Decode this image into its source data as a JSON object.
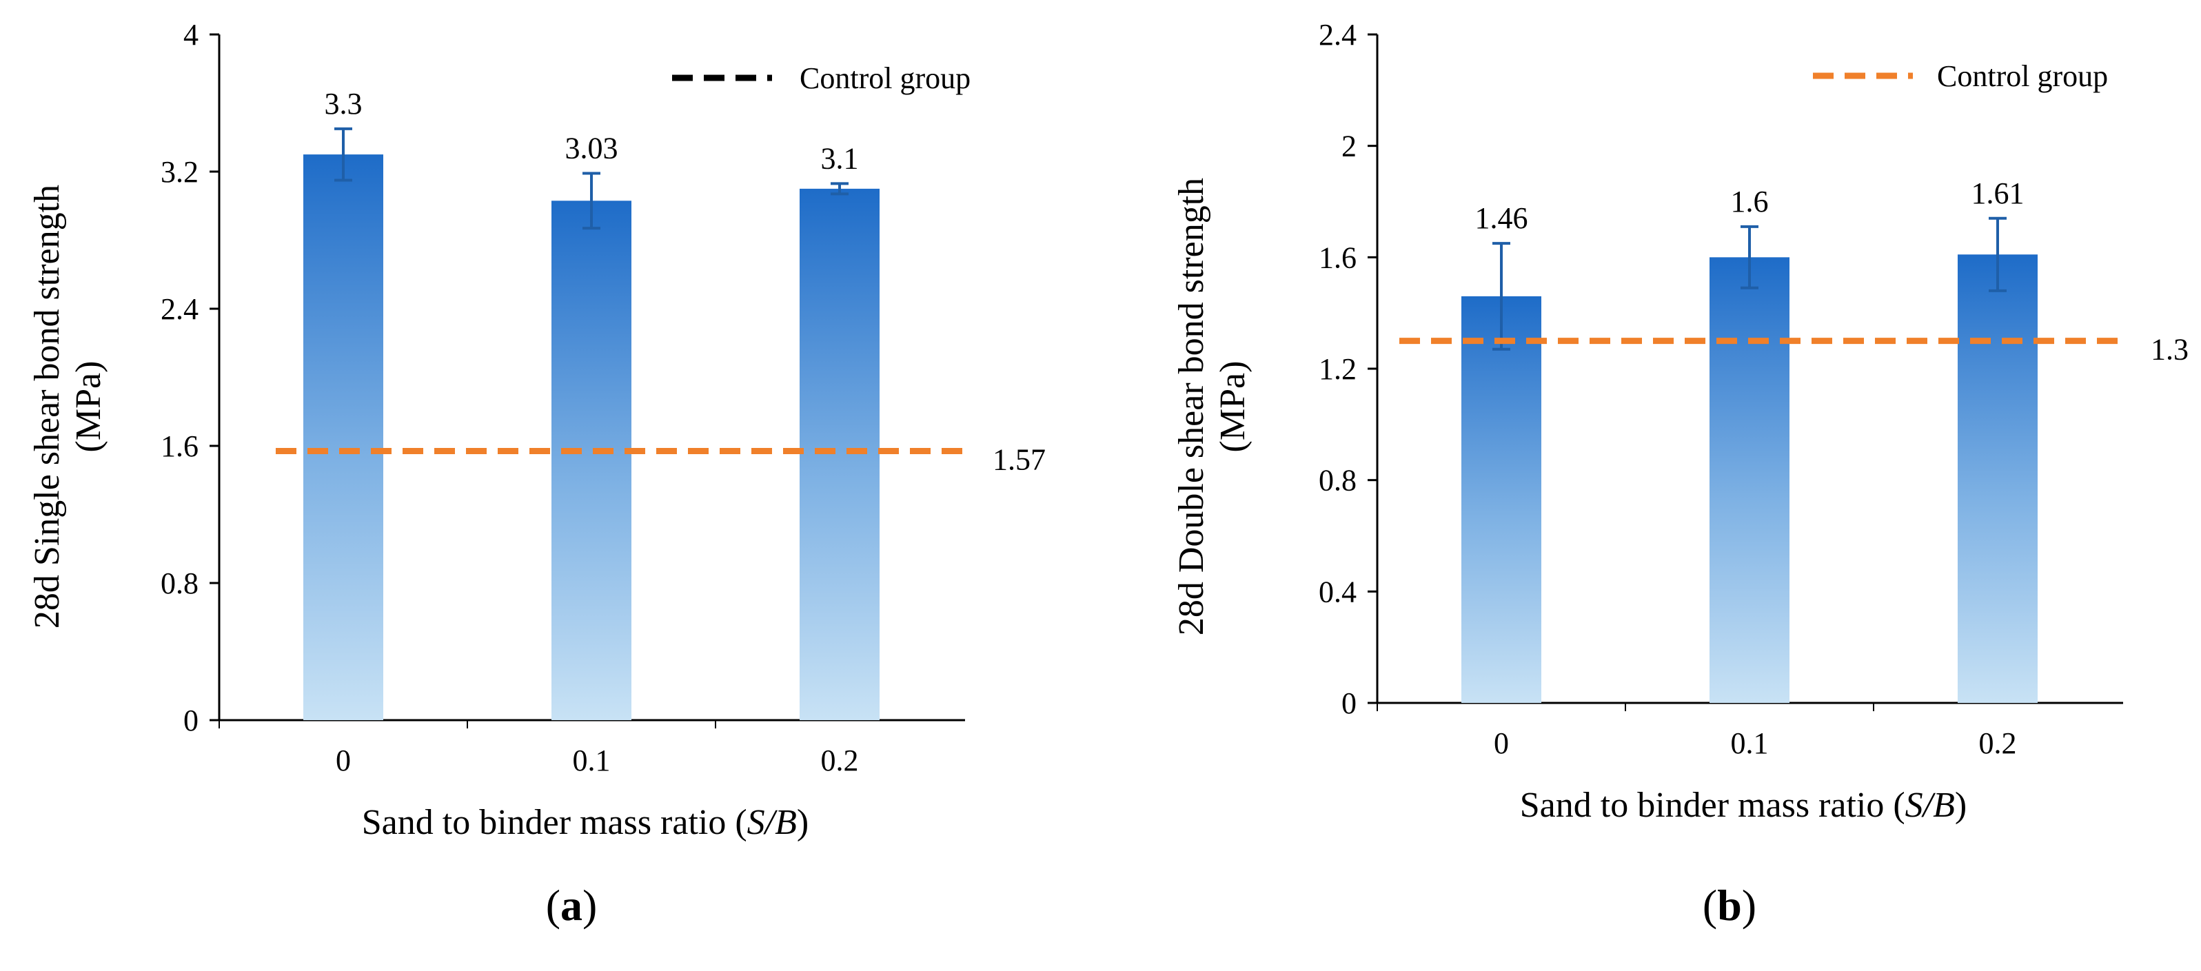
{
  "chart_data": [
    {
      "type": "bar",
      "panel_label": "(a)",
      "categories": [
        "0",
        "0.1",
        "0.2"
      ],
      "values": [
        3.3,
        3.03,
        3.1
      ],
      "value_labels": [
        "3.3",
        "3.03",
        "3.1"
      ],
      "error": [
        0.15,
        0.16,
        0.03
      ],
      "ylabel_line1": "28d Single  shear bond strength",
      "ylabel_line2": "(MPa)",
      "xlabel": "Sand to binder  mass ratio  (S/B)",
      "ylim": [
        0,
        4
      ],
      "yticks": [
        0,
        0.8,
        1.6,
        2.4,
        3.2,
        4
      ],
      "ytick_labels": [
        "0",
        "0.8",
        "1.6",
        "2.4",
        "3.2",
        "4"
      ],
      "control": {
        "value": 1.57,
        "label": "1.57"
      },
      "legend": {
        "label": "Control group",
        "color": "#000000",
        "position": "top-right"
      }
    },
    {
      "type": "bar",
      "panel_label": "(b)",
      "categories": [
        "0",
        "0.1",
        "0.2"
      ],
      "values": [
        1.46,
        1.6,
        1.61
      ],
      "value_labels": [
        "1.46",
        "1.6",
        "1.61"
      ],
      "error": [
        0.19,
        0.11,
        0.13
      ],
      "ylabel_line1": "28d Double  shear bond strength",
      "ylabel_line2": "(MPa)",
      "xlabel": "Sand to binder  mass ratio  (S/B)",
      "ylim": [
        0,
        2.4
      ],
      "yticks": [
        0,
        0.4,
        0.8,
        1.2,
        1.6,
        2,
        2.4
      ],
      "ytick_labels": [
        "0",
        "0.4",
        "0.8",
        "1.2",
        "1.6",
        "2",
        "2.4"
      ],
      "control": {
        "value": 1.3,
        "label": "1.3"
      },
      "legend": {
        "label": "Control group",
        "color": "#F0802A",
        "position": "top-right"
      }
    }
  ],
  "colors": {
    "bar_top": "#1E6CC8",
    "bar_bottom": "#C8E2F5",
    "error_bar": "#1F5FA8",
    "control_line": "#F0802A",
    "axis": "#000000"
  }
}
